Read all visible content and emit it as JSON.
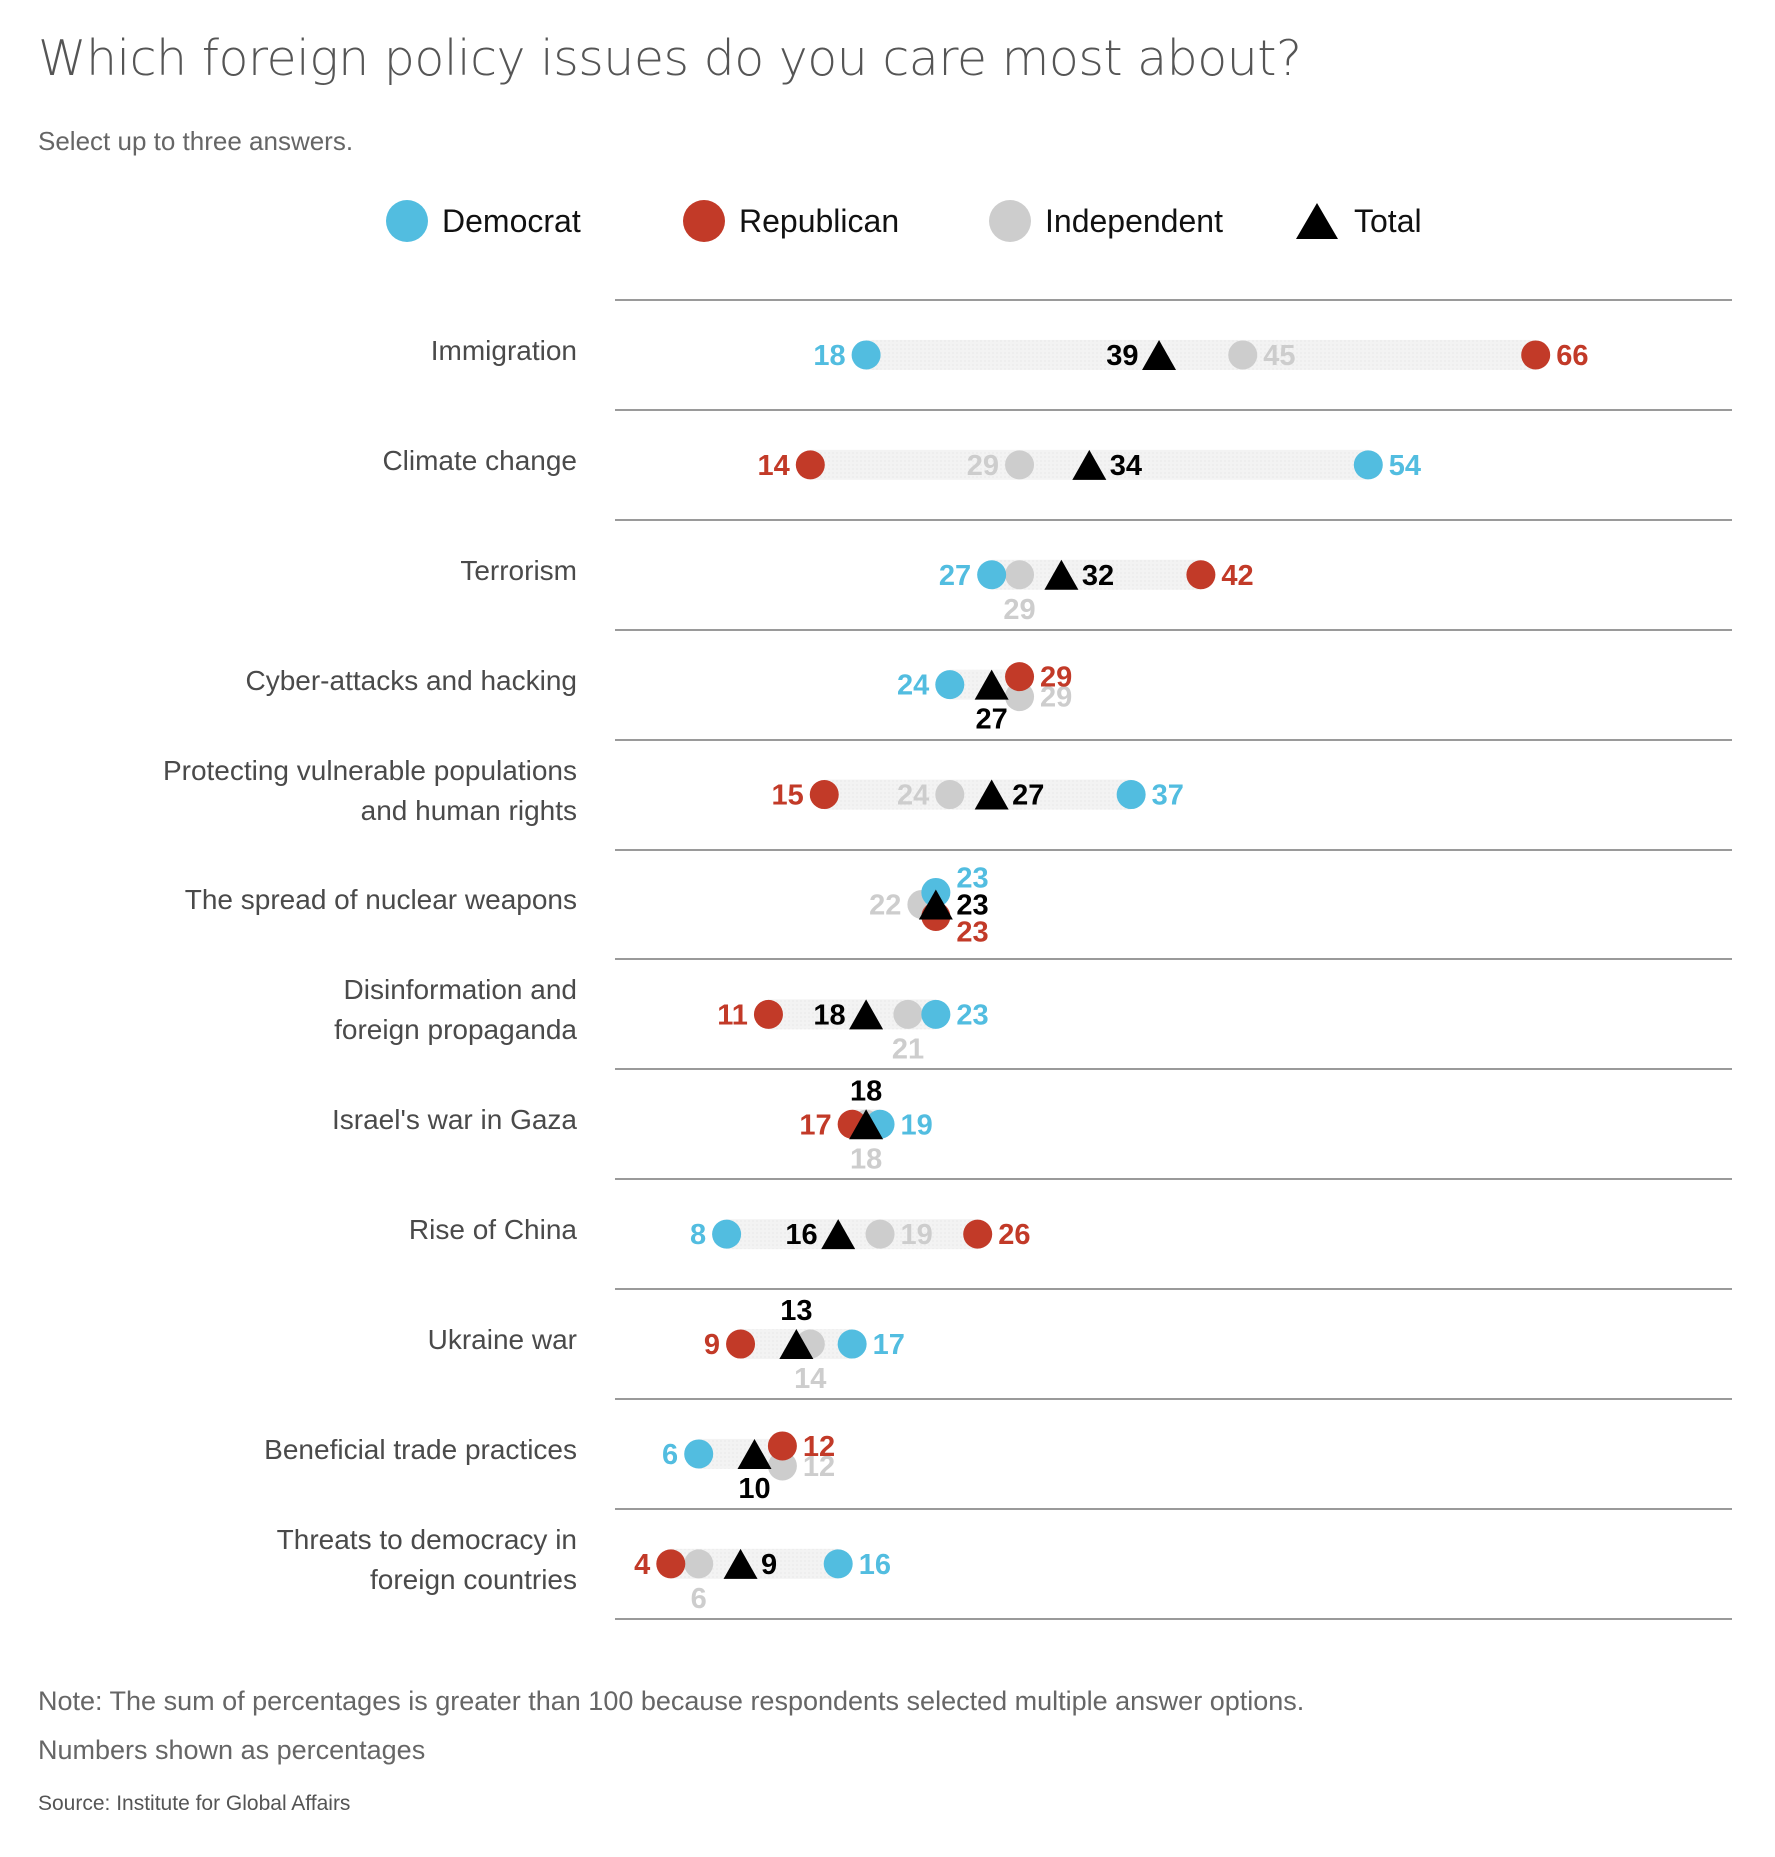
{
  "header": {
    "title": "Which foreign policy issues do you care most about?",
    "subtitle": "Select up to three answers."
  },
  "legend": [
    {
      "key": "democrat",
      "label": "Democrat",
      "color": "#52bde0",
      "shape": "circle"
    },
    {
      "key": "republican",
      "label": "Republican",
      "color": "#c23a28",
      "shape": "circle"
    },
    {
      "key": "independent",
      "label": "Independent",
      "color": "#cdcdcd",
      "shape": "circle"
    },
    {
      "key": "total",
      "label": "Total",
      "color": "#000000",
      "shape": "triangle"
    }
  ],
  "chart_data": {
    "type": "scatter",
    "subtype": "dot-plot",
    "title": "Which foreign policy issues do you care most about?",
    "subtitle": "Select up to three answers.",
    "xlabel": "",
    "ylabel": "",
    "unit": "percent",
    "xlim": [
      0,
      80
    ],
    "grid": false,
    "legend_position": "top",
    "categories": [
      "Immigration",
      "Climate change",
      "Terrorism",
      "Cyber-attacks and hacking",
      "Protecting vulnerable populations\nand human rights",
      "The spread of nuclear weapons",
      "Disinformation and\nforeign propaganda",
      "Israel's war in Gaza",
      "Rise of China",
      "Ukraine war",
      "Beneficial trade practices",
      "Threats to democracy in\nforeign countries"
    ],
    "series": [
      {
        "name": "Democrat",
        "key": "democrat",
        "values": [
          18,
          54,
          27,
          24,
          37,
          23,
          23,
          19,
          8,
          17,
          6,
          16
        ]
      },
      {
        "name": "Republican",
        "key": "republican",
        "values": [
          66,
          14,
          42,
          29,
          15,
          23,
          11,
          17,
          26,
          9,
          12,
          4
        ]
      },
      {
        "name": "Independent",
        "key": "independent",
        "values": [
          45,
          29,
          29,
          29,
          24,
          22,
          21,
          18,
          19,
          14,
          12,
          6
        ]
      },
      {
        "name": "Total",
        "key": "total",
        "values": [
          39,
          34,
          32,
          27,
          27,
          23,
          18,
          18,
          16,
          13,
          10,
          9
        ]
      }
    ]
  },
  "footer": {
    "note": "Note: The sum of percentages is greater than  100 because respondents selected multiple answer options.",
    "units_note": "Numbers shown as percentages",
    "source": "Source: Institute for Global Affairs"
  }
}
